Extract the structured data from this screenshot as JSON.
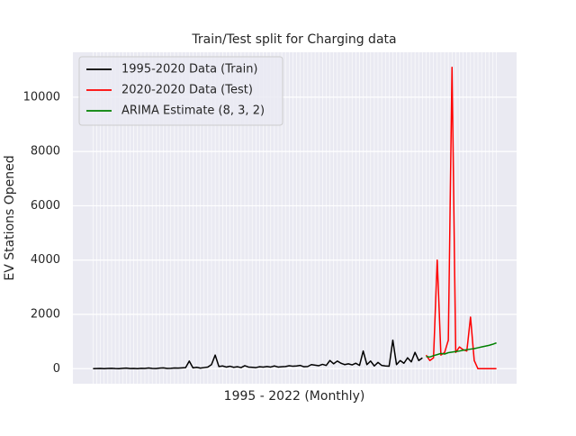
{
  "chart_data": {
    "type": "line",
    "title": "Train/Test split for Charging data",
    "x_label": "1995 - 2022 (Monthly)",
    "y_label": "EV Stations Opened",
    "xlim": [
      -5.45,
      114.45
    ],
    "ylim": [
      -555,
      11655
    ],
    "yticks": [
      0,
      2000,
      4000,
      6000,
      8000,
      10000
    ],
    "grid": true,
    "legend": "upper left",
    "series": [
      {
        "name": "1995-2020 Data (Train)",
        "color": "#000000",
        "x": [
          0,
          1,
          2,
          3,
          4,
          5,
          6,
          7,
          8,
          9,
          10,
          11,
          12,
          13,
          14,
          15,
          16,
          17,
          18,
          19,
          20,
          21,
          22,
          23,
          24,
          25,
          26,
          27,
          28,
          29,
          30,
          31,
          32,
          33,
          34,
          35,
          36,
          37,
          38,
          39,
          40,
          41,
          42,
          43,
          44,
          45,
          46,
          47,
          48,
          49,
          50,
          51,
          52,
          53,
          54,
          55,
          56,
          57,
          58,
          59,
          60,
          61,
          62,
          63,
          64,
          65,
          66,
          67,
          68,
          69,
          70,
          71,
          72,
          73,
          74,
          75,
          76,
          77,
          78,
          79,
          80,
          81,
          82,
          83,
          84,
          85,
          86,
          87,
          88,
          89
        ],
        "values": [
          0,
          5,
          10,
          0,
          8,
          15,
          5,
          0,
          12,
          20,
          5,
          10,
          0,
          15,
          8,
          25,
          10,
          5,
          20,
          30,
          10,
          15,
          25,
          20,
          30,
          40,
          280,
          30,
          50,
          20,
          40,
          60,
          150,
          500,
          80,
          100,
          60,
          90,
          50,
          70,
          40,
          110,
          60,
          50,
          40,
          70,
          60,
          80,
          60,
          100,
          60,
          70,
          80,
          110,
          90,
          100,
          120,
          70,
          80,
          150,
          130,
          110,
          160,
          120,
          300,
          180,
          280,
          200,
          150,
          180,
          140,
          200,
          120,
          650,
          150,
          280,
          100,
          230,
          120,
          100,
          90,
          1050,
          150,
          300,
          200,
          400,
          250,
          600,
          300,
          400
        ]
      },
      {
        "name": "2020-2020 Data (Test)",
        "color": "#ff0000",
        "x": [
          90,
          91,
          92,
          93,
          94,
          95,
          96,
          97,
          98,
          99,
          100,
          101,
          102,
          103,
          104,
          105,
          106,
          107,
          108,
          109
        ],
        "values": [
          500,
          300,
          400,
          4000,
          500,
          600,
          1050,
          11100,
          600,
          800,
          700,
          650,
          1900,
          300,
          0,
          0,
          0,
          0,
          0,
          0
        ]
      },
      {
        "name": "ARIMA Estimate (8, 3, 2)",
        "color": "#008000",
        "x": [
          90,
          91,
          92,
          93,
          94,
          95,
          96,
          97,
          98,
          99,
          100,
          101,
          102,
          103,
          104,
          105,
          106,
          107,
          108,
          109
        ],
        "values": [
          450,
          430,
          480,
          520,
          560,
          540,
          590,
          610,
          630,
          650,
          680,
          700,
          720,
          740,
          770,
          800,
          830,
          860,
          900,
          950
        ]
      }
    ]
  }
}
